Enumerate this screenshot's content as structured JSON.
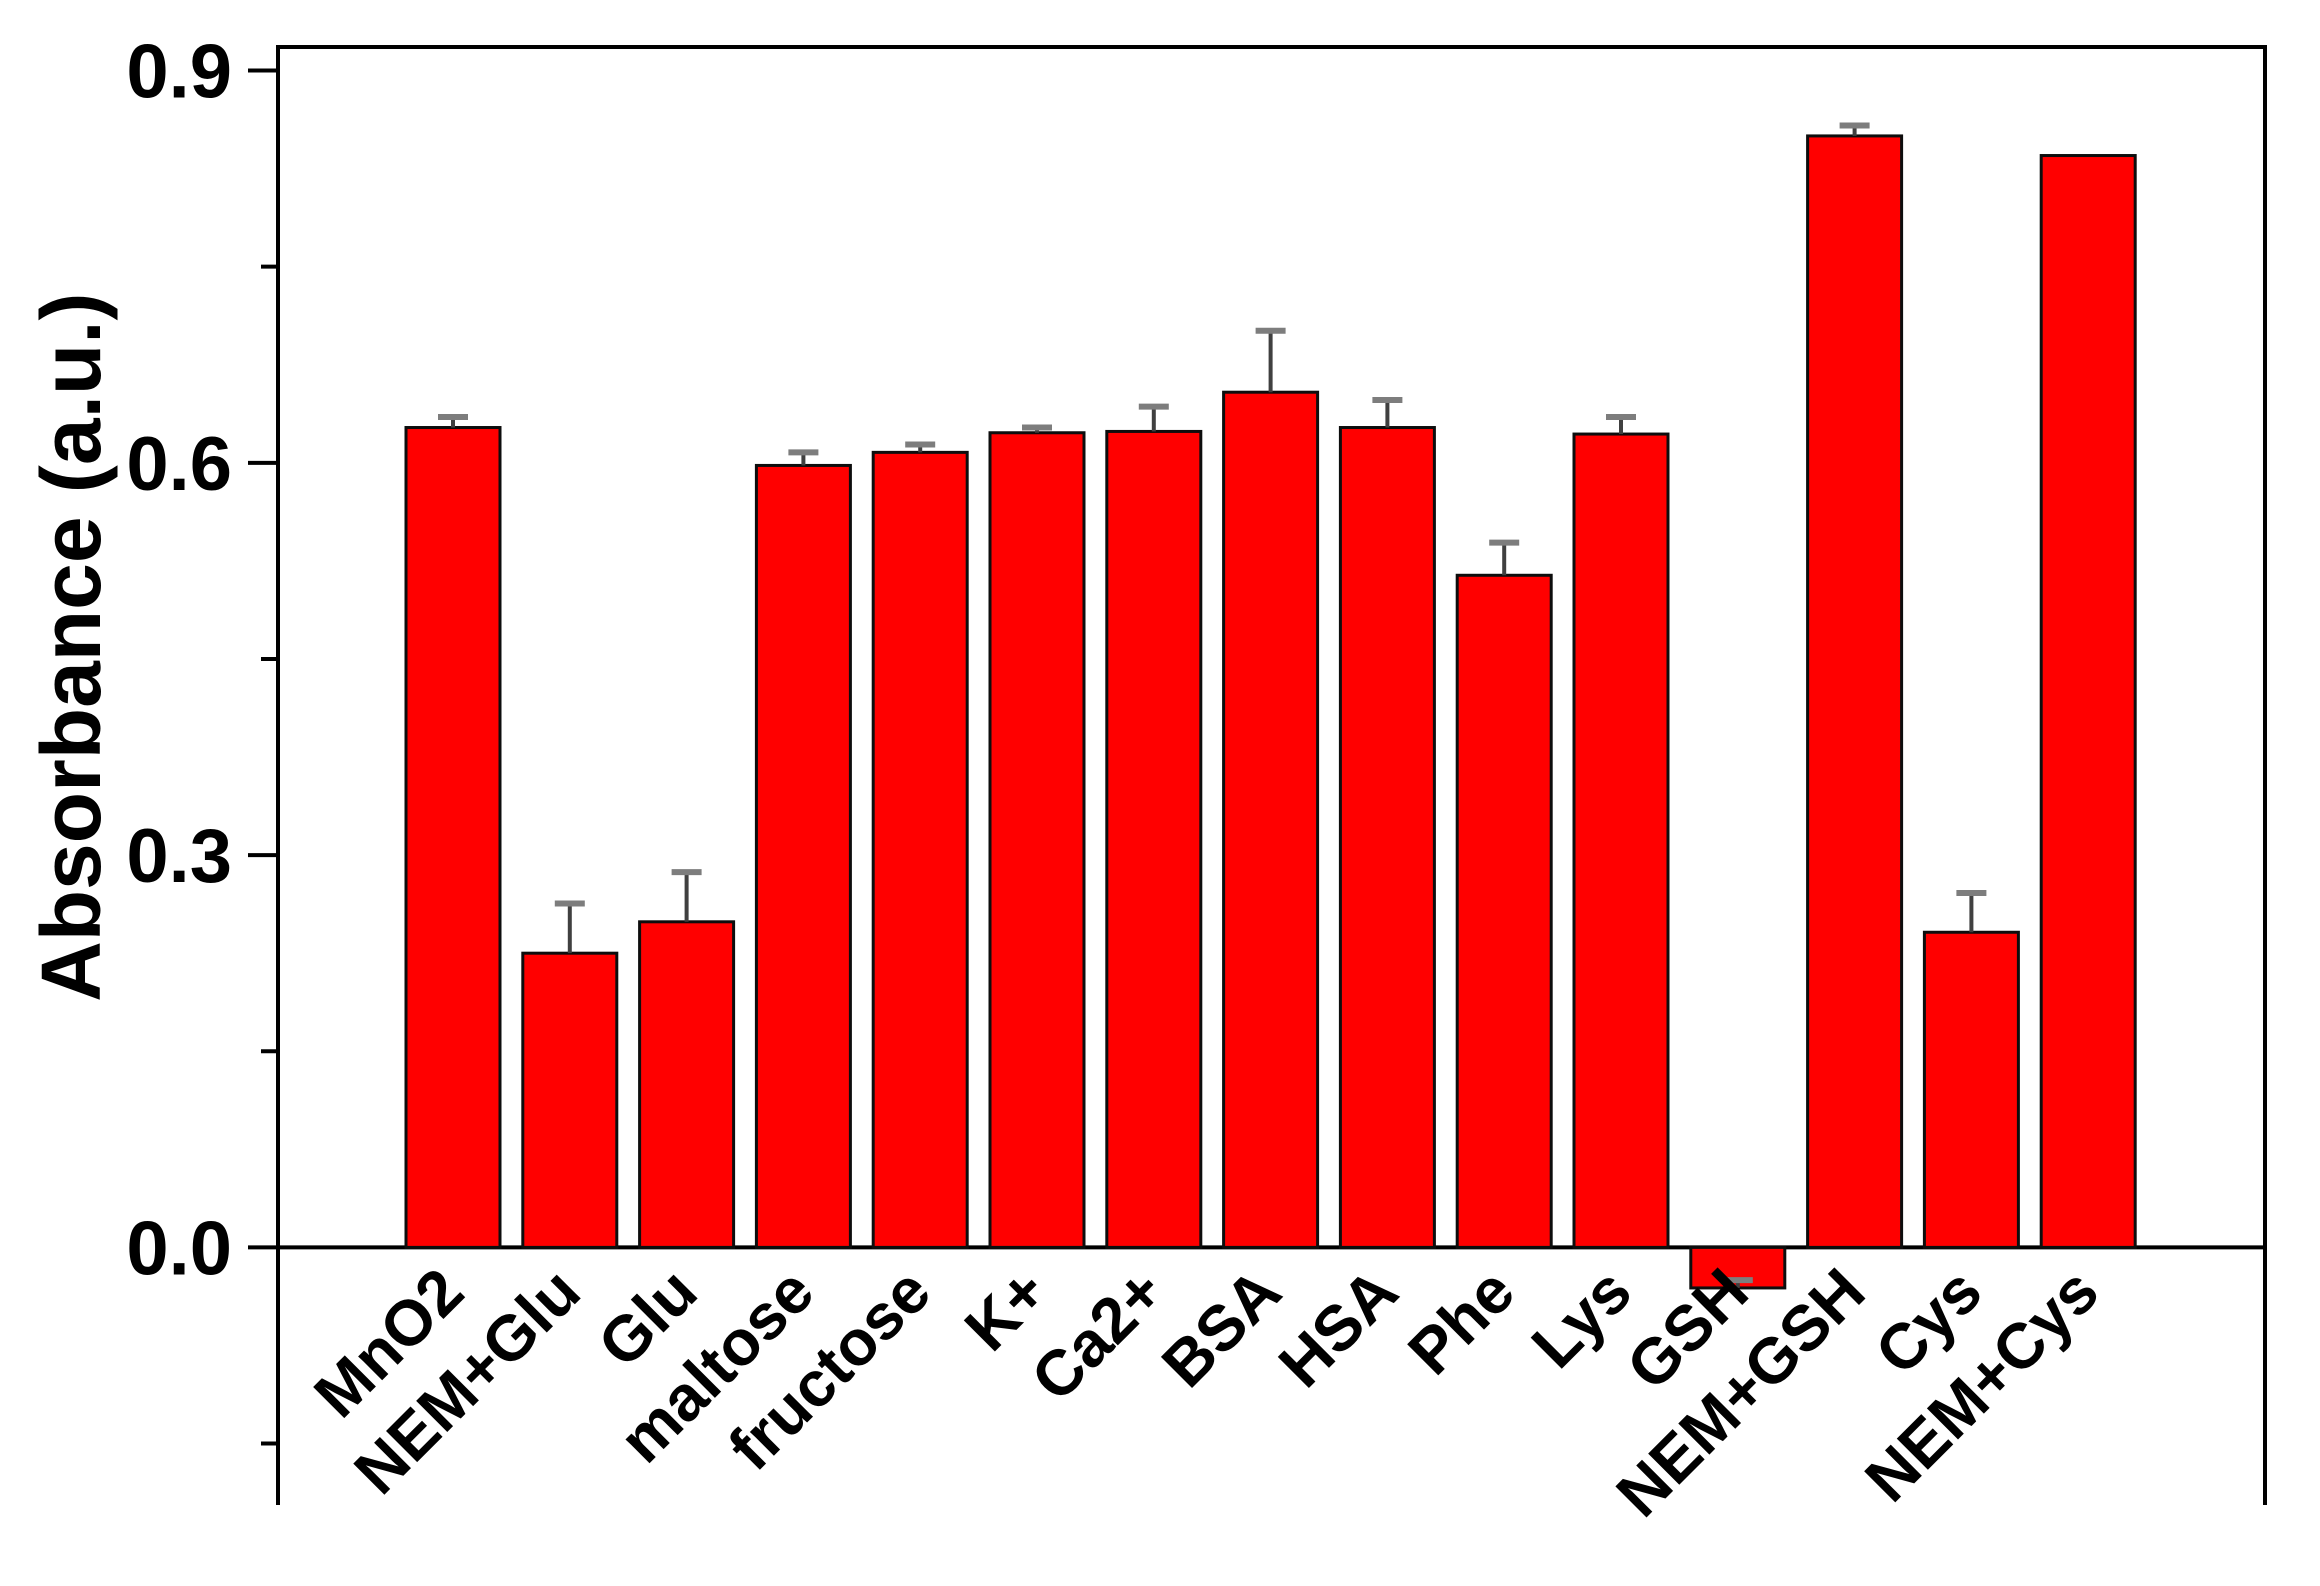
{
  "figure": {
    "background": "#ffffff"
  },
  "chart_data": {
    "type": "bar",
    "title": "",
    "xlabel": "",
    "ylabel": "Absorbance (a.u.)",
    "categories": [
      "MnO2",
      "NEM+Glu",
      "Glu",
      "maltose",
      "fructose",
      "K+",
      "Ca2+",
      "BSA",
      "HSA",
      "Phe",
      "Lys",
      "GSH",
      "NEM+GSH",
      "Cys",
      "NEM+Cys"
    ],
    "values": [
      0.627,
      0.225,
      0.249,
      0.598,
      0.608,
      0.623,
      0.624,
      0.654,
      0.627,
      0.514,
      0.622,
      -0.031,
      0.85,
      0.241,
      0.835
    ],
    "errors": [
      0.008,
      0.038,
      0.038,
      0.01,
      0.006,
      0.004,
      0.019,
      0.047,
      0.021,
      0.025,
      0.013,
      0.006,
      0.008,
      0.03,
      0
    ],
    "error_sides": "upper",
    "ytick_labels": [
      "0.0",
      "0.3",
      "0.6",
      "0.9"
    ],
    "ytick_values": [
      0.0,
      0.3,
      0.6,
      0.9
    ],
    "minor_ytick_values": [
      -0.15,
      0.15,
      0.45,
      0.75
    ],
    "ylim": [
      -0.197,
      0.918
    ],
    "grid": false,
    "legend": null,
    "bar_color": "#ff0000",
    "bar_edge_color": "#0d0d0d",
    "error_stem_color": "#404040",
    "error_cap_color": "#7d7d7d",
    "axis_color": "#000000"
  }
}
